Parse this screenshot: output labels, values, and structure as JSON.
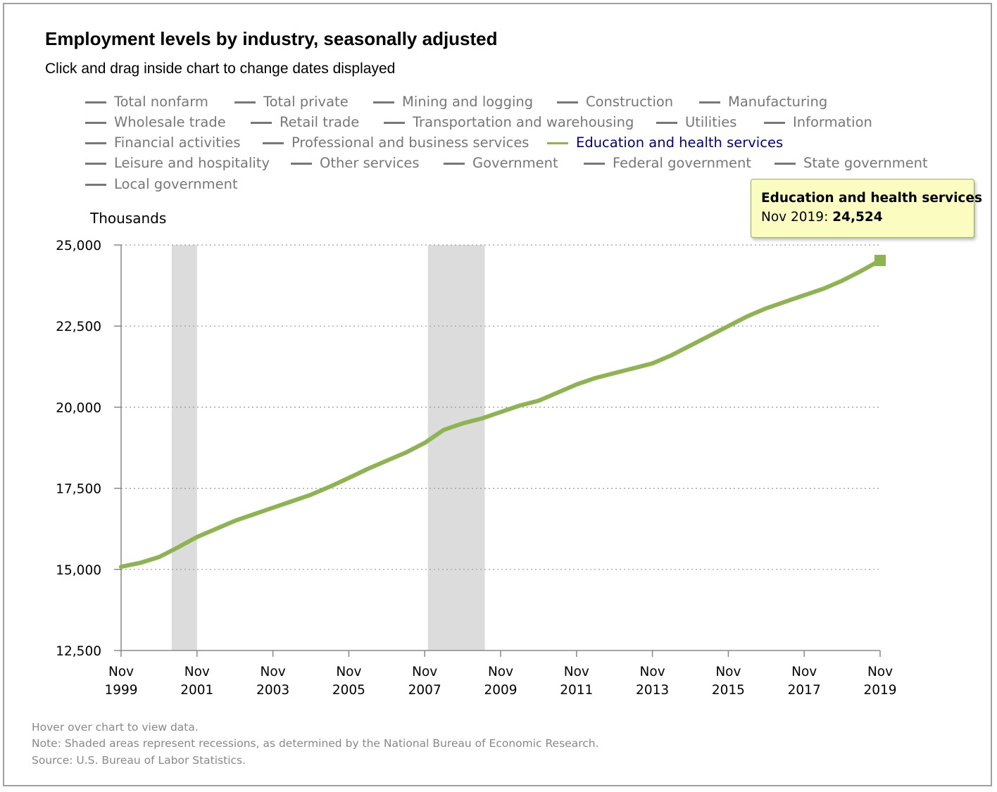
{
  "title": "Employment levels by industry, seasonally adjusted",
  "subtitle": "Click and drag inside chart to change dates displayed",
  "legend": [
    {
      "label": "Total nonfarm",
      "active": false
    },
    {
      "label": "Total private",
      "active": false
    },
    {
      "label": "Mining and logging",
      "active": false
    },
    {
      "label": "Construction",
      "active": false
    },
    {
      "label": "Manufacturing",
      "active": false
    },
    {
      "label": "Wholesale trade",
      "active": false
    },
    {
      "label": "Retail trade",
      "active": false
    },
    {
      "label": "Transportation and warehousing",
      "active": false
    },
    {
      "label": "Utilities",
      "active": false
    },
    {
      "label": "Information",
      "active": false
    },
    {
      "label": "Financial activities",
      "active": false
    },
    {
      "label": "Professional and business services",
      "active": false
    },
    {
      "label": "Education and health services",
      "active": true
    },
    {
      "label": "Leisure and hospitality",
      "active": false
    },
    {
      "label": "Other services",
      "active": false
    },
    {
      "label": "Government",
      "active": false
    },
    {
      "label": "Federal government",
      "active": false
    },
    {
      "label": "State government",
      "active": false
    },
    {
      "label": "Local government",
      "active": false
    }
  ],
  "colors": {
    "active_series": "#8db451",
    "inactive_legend": "#777777",
    "active_legend_text": "#000080",
    "recession_shade": "#dcdcdc",
    "tooltip_bg": "#fafcc0"
  },
  "tooltip": {
    "series": "Education and health services",
    "date": "Nov 2019",
    "value": "24,524"
  },
  "notes": {
    "hover": "Hover over chart to view data.",
    "recession": "Note: Shaded areas represent recessions, as determined by the National Bureau of Economic Research.",
    "source": "Source: U.S. Bureau of Labor Statistics."
  },
  "chart_data": {
    "type": "line",
    "ylabel": "Thousands",
    "ylim": [
      12500,
      25000
    ],
    "xlim": [
      "Nov 1999",
      "Nov 2019"
    ],
    "y_ticks": [
      "12,500",
      "15,000",
      "17,500",
      "20,000",
      "22,500",
      "25,000"
    ],
    "x_ticks": [
      {
        "month": "Nov",
        "year": "1999"
      },
      {
        "month": "Nov",
        "year": "2001"
      },
      {
        "month": "Nov",
        "year": "2003"
      },
      {
        "month": "Nov",
        "year": "2005"
      },
      {
        "month": "Nov",
        "year": "2007"
      },
      {
        "month": "Nov",
        "year": "2009"
      },
      {
        "month": "Nov",
        "year": "2011"
      },
      {
        "month": "Nov",
        "year": "2013"
      },
      {
        "month": "Nov",
        "year": "2015"
      },
      {
        "month": "Nov",
        "year": "2017"
      },
      {
        "month": "Nov",
        "year": "2019"
      }
    ],
    "grid": "horizontal dotted",
    "recessions": [
      {
        "start": "Mar 2001",
        "end": "Nov 2001"
      },
      {
        "start": "Dec 2007",
        "end": "Jun 2009"
      }
    ],
    "series": [
      {
        "name": "Education and health services",
        "x": [
          "Nov 1999",
          "May 2000",
          "Nov 2000",
          "May 2001",
          "Nov 2001",
          "May 2002",
          "Nov 2002",
          "May 2003",
          "Nov 2003",
          "May 2004",
          "Nov 2004",
          "May 2005",
          "Nov 2005",
          "May 2006",
          "Nov 2006",
          "May 2007",
          "Nov 2007",
          "May 2008",
          "Nov 2008",
          "May 2009",
          "Nov 2009",
          "May 2010",
          "Nov 2010",
          "May 2011",
          "Nov 2011",
          "May 2012",
          "Nov 2012",
          "May 2013",
          "Nov 2013",
          "May 2014",
          "Nov 2014",
          "May 2015",
          "Nov 2015",
          "May 2016",
          "Nov 2016",
          "May 2017",
          "Nov 2017",
          "May 2018",
          "Nov 2018",
          "May 2019",
          "Nov 2019"
        ],
        "values": [
          15080,
          15200,
          15380,
          15680,
          16000,
          16250,
          16500,
          16700,
          16900,
          17100,
          17300,
          17550,
          17820,
          18100,
          18350,
          18600,
          18900,
          19300,
          19500,
          19650,
          19850,
          20050,
          20200,
          20450,
          20700,
          20900,
          21050,
          21200,
          21350,
          21600,
          21900,
          22200,
          22500,
          22800,
          23050,
          23250,
          23450,
          23650,
          23900,
          24200,
          24524
        ]
      }
    ]
  }
}
